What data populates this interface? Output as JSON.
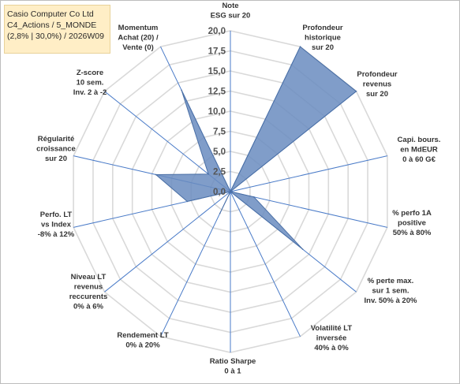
{
  "title_box": {
    "line1": "Casio Computer Co Ltd",
    "line2": "C4_Actions / 5_MONDE",
    "line3": "(2,8% | 30,0%) / 2026W09"
  },
  "chart_data": {
    "type": "radar",
    "categories": [
      [
        "Note",
        "ESG sur 20"
      ],
      [
        "Profondeur",
        "historique",
        "sur 20"
      ],
      [
        "Profondeur",
        "revenus",
        "sur 20"
      ],
      [
        "Capi. bours.",
        "en MdEUR",
        "0 à 60 G€"
      ],
      [
        "% perfo 1A",
        "positive",
        "50% à 80%"
      ],
      [
        "% perte max.",
        "sur 1 sem.",
        "Inv. 50% à 20%"
      ],
      [
        "Volatilité LT",
        "inversée",
        "40% à 0%"
      ],
      [
        "Ratio Sharpe",
        "0 à 1"
      ],
      [
        "Rendement LT",
        "0% à 20%"
      ],
      [
        "Niveau LT",
        "revenus",
        "reccurents",
        "0% à 6%"
      ],
      [
        "Perfo. LT",
        "vs Index",
        "-8% à 12%"
      ],
      [
        "Régularité",
        "croissance",
        "sur 20"
      ],
      [
        "Z-score",
        "10 sem.",
        "Inv. 2 à -2"
      ],
      [
        "Momentum",
        "Achat (20) /",
        "Vente (0)"
      ]
    ],
    "values": [
      0,
      20,
      20,
      0,
      3,
      11.5,
      0,
      0,
      3,
      0,
      5.5,
      9.5,
      3.5,
      14
    ],
    "rlim": [
      0,
      20
    ],
    "ticks": [
      "0,0",
      "2,5",
      "5,0",
      "7,5",
      "10,0",
      "12,5",
      "15,0",
      "17,5",
      "20,0"
    ],
    "tick_values": [
      0,
      2.5,
      5,
      7.5,
      10,
      12.5,
      15,
      17.5,
      20
    ],
    "fill_color": "#6a8cc0",
    "line_color": "#4a6fa5",
    "spoke_color": "#4a7bc8",
    "grid_color": "#d9d9d9"
  }
}
